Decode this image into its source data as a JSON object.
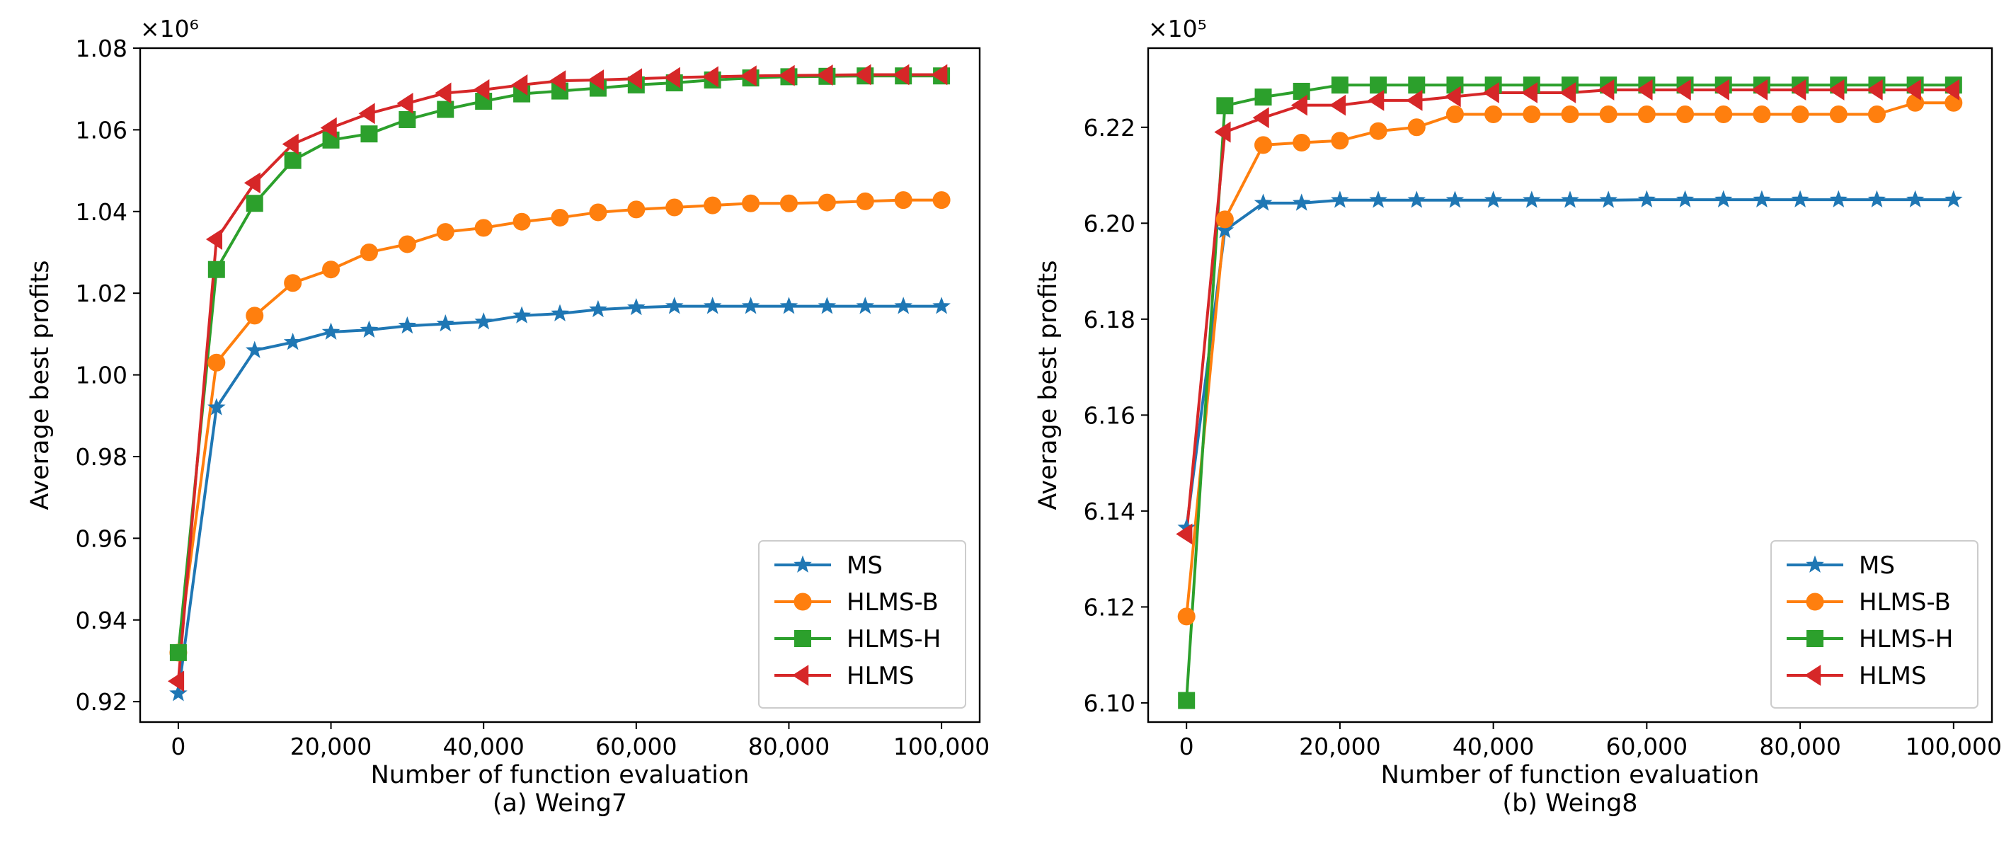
{
  "colors": {
    "MS": "#1f77b4",
    "HLMS-B": "#ff7f0e",
    "HLMS-H": "#2ca02c",
    "HLMS": "#d62728"
  },
  "chart_data": [
    {
      "type": "line",
      "title": "",
      "caption": "(a) Weing7",
      "xlabel": "Number of function evaluation",
      "ylabel": "Average best profits",
      "scale_label": "×10⁶",
      "xlim": [
        -5000,
        105000
      ],
      "ylim": [
        0.915,
        1.08
      ],
      "xticks": [
        0,
        20000,
        40000,
        60000,
        80000,
        100000
      ],
      "xtick_labels": [
        "0",
        "20,000",
        "40,000",
        "60,000",
        "80,000",
        "100,000"
      ],
      "yticks": [
        0.92,
        0.94,
        0.96,
        0.98,
        1.0,
        1.02,
        1.04,
        1.06,
        1.08
      ],
      "ytick_labels": [
        "0.92",
        "0.94",
        "0.96",
        "0.98",
        "1.00",
        "1.02",
        "1.04",
        "1.06",
        "1.08"
      ],
      "legend_position": "lower-right",
      "x": [
        0,
        5000,
        10000,
        15000,
        20000,
        25000,
        30000,
        35000,
        40000,
        45000,
        50000,
        55000,
        60000,
        65000,
        70000,
        75000,
        80000,
        85000,
        90000,
        95000,
        100000
      ],
      "series": [
        {
          "name": "MS",
          "marker": "star",
          "values": [
            0.922,
            0.992,
            1.006,
            1.008,
            1.0105,
            1.011,
            1.012,
            1.0125,
            1.013,
            1.0145,
            1.015,
            1.016,
            1.0165,
            1.0168,
            1.0168,
            1.0168,
            1.0168,
            1.0168,
            1.0168,
            1.0168,
            1.0168
          ]
        },
        {
          "name": "HLMS-B",
          "marker": "circle",
          "values": [
            0.932,
            1.003,
            1.0145,
            1.0225,
            1.0258,
            1.03,
            1.032,
            1.035,
            1.036,
            1.0375,
            1.0385,
            1.0398,
            1.0405,
            1.041,
            1.0415,
            1.042,
            1.042,
            1.0422,
            1.0425,
            1.0428,
            1.0428
          ]
        },
        {
          "name": "HLMS-H",
          "marker": "square",
          "values": [
            0.932,
            1.0258,
            1.042,
            1.0525,
            1.0575,
            1.059,
            1.0625,
            1.065,
            1.067,
            1.0688,
            1.0695,
            1.0702,
            1.071,
            1.0715,
            1.0722,
            1.0727,
            1.073,
            1.0731,
            1.0732,
            1.0732,
            1.0732
          ]
        },
        {
          "name": "HLMS",
          "marker": "triangle-left",
          "values": [
            0.925,
            1.0332,
            1.047,
            1.0565,
            1.0605,
            1.064,
            1.0665,
            1.069,
            1.0698,
            1.071,
            1.072,
            1.0722,
            1.0725,
            1.0728,
            1.073,
            1.0732,
            1.0733,
            1.0734,
            1.0735,
            1.0735,
            1.0735
          ]
        }
      ]
    },
    {
      "type": "line",
      "title": "",
      "caption": "(b) Weing8",
      "xlabel": "Number of function evaluation",
      "ylabel": "Average best profits",
      "scale_label": "×10⁵",
      "xlim": [
        -5000,
        105000
      ],
      "ylim": [
        6.096,
        6.2365
      ],
      "xticks": [
        0,
        20000,
        40000,
        60000,
        80000,
        100000
      ],
      "xtick_labels": [
        "0",
        "20,000",
        "40,000",
        "60,000",
        "80,000",
        "100,000"
      ],
      "yticks": [
        6.1,
        6.12,
        6.14,
        6.16,
        6.18,
        6.2,
        6.22
      ],
      "ytick_labels": [
        "6.10",
        "6.12",
        "6.14",
        "6.16",
        "6.18",
        "6.20",
        "6.22"
      ],
      "legend_position": "lower-right",
      "x": [
        0,
        5000,
        10000,
        15000,
        20000,
        25000,
        30000,
        35000,
        40000,
        45000,
        50000,
        55000,
        60000,
        65000,
        70000,
        75000,
        80000,
        85000,
        90000,
        95000,
        100000
      ],
      "series": [
        {
          "name": "MS",
          "marker": "star",
          "values": [
            6.1365,
            6.1985,
            6.2042,
            6.2042,
            6.2048,
            6.2048,
            6.2048,
            6.2048,
            6.2048,
            6.2048,
            6.2048,
            6.2048,
            6.2049,
            6.2049,
            6.2049,
            6.2049,
            6.2049,
            6.2049,
            6.2049,
            6.2049,
            6.2049
          ]
        },
        {
          "name": "HLMS-B",
          "marker": "circle",
          "values": [
            6.118,
            6.2008,
            6.2163,
            6.2168,
            6.2172,
            6.2192,
            6.22,
            6.2227,
            6.2227,
            6.2227,
            6.2227,
            6.2227,
            6.2227,
            6.2227,
            6.2227,
            6.2227,
            6.2227,
            6.2227,
            6.2227,
            6.2251,
            6.2251
          ]
        },
        {
          "name": "HLMS-H",
          "marker": "square",
          "values": [
            6.1005,
            6.2245,
            6.2263,
            6.2275,
            6.2288,
            6.2288,
            6.2288,
            6.2288,
            6.2288,
            6.2288,
            6.2288,
            6.2288,
            6.2288,
            6.2288,
            6.2288,
            6.2288,
            6.2288,
            6.2288,
            6.2288,
            6.2288,
            6.2288
          ]
        },
        {
          "name": "HLMS",
          "marker": "triangle-left",
          "values": [
            6.1352,
            6.219,
            6.222,
            6.2246,
            6.2246,
            6.2256,
            6.2256,
            6.2264,
            6.2272,
            6.2272,
            6.2272,
            6.2278,
            6.2278,
            6.2278,
            6.2278,
            6.2278,
            6.2278,
            6.2278,
            6.2278,
            6.2278,
            6.2278
          ]
        }
      ]
    }
  ]
}
